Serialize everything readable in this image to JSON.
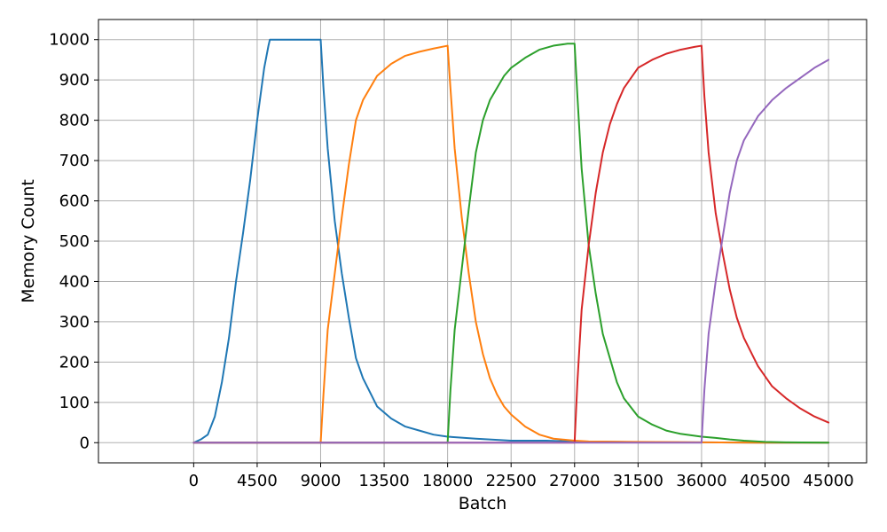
{
  "chart_data": {
    "type": "line",
    "title": "",
    "xlabel": "Batch",
    "ylabel": "Memory Count",
    "xlim": [
      -6750,
      47700
    ],
    "ylim": [
      -50,
      1050
    ],
    "xticks": [
      0,
      4500,
      9000,
      13500,
      18000,
      22500,
      27000,
      31500,
      36000,
      40500,
      45000
    ],
    "yticks": [
      0,
      100,
      200,
      300,
      400,
      500,
      600,
      700,
      800,
      900,
      1000
    ],
    "grid": true,
    "legend": "none",
    "series": [
      {
        "color": "#1f77b4",
        "x": [
          0,
          500,
          1000,
          1500,
          2000,
          2500,
          3000,
          3500,
          4000,
          4500,
          5000,
          5300,
          5400,
          5500,
          6000,
          7000,
          8000,
          9000,
          9200,
          9500,
          10000,
          10500,
          11000,
          11500,
          12000,
          13000,
          14000,
          15000,
          16000,
          17000,
          18000,
          20000,
          22500,
          25000,
          27000,
          30000,
          33000,
          36000,
          40000,
          45000
        ],
        "y": [
          0,
          8,
          20,
          65,
          150,
          260,
          400,
          520,
          650,
          800,
          930,
          985,
          1000,
          1000,
          1000,
          1000,
          1000,
          1000,
          880,
          730,
          550,
          420,
          310,
          210,
          160,
          90,
          60,
          40,
          30,
          20,
          15,
          10,
          5,
          5,
          3,
          2,
          1,
          1,
          0,
          0
        ]
      },
      {
        "color": "#ff7f0e",
        "x": [
          0,
          9000,
          9200,
          9500,
          10000,
          10500,
          11000,
          11500,
          12000,
          13000,
          14000,
          15000,
          16000,
          17000,
          18000,
          18200,
          18500,
          19000,
          19500,
          20000,
          20500,
          21000,
          21500,
          22000,
          22500,
          23500,
          24500,
          25500,
          27000,
          28000,
          31500,
          36000,
          40000,
          45000
        ],
        "y": [
          0,
          0,
          120,
          280,
          420,
          560,
          690,
          800,
          850,
          910,
          940,
          960,
          970,
          978,
          985,
          880,
          730,
          560,
          420,
          300,
          220,
          160,
          120,
          90,
          70,
          40,
          20,
          10,
          5,
          3,
          2,
          1,
          0,
          0
        ]
      },
      {
        "color": "#2ca02c",
        "x": [
          0,
          18000,
          18200,
          18500,
          19000,
          19500,
          20000,
          20500,
          21000,
          21500,
          22000,
          22500,
          23500,
          24500,
          25500,
          26500,
          27000,
          27200,
          27500,
          28000,
          28500,
          29000,
          29500,
          30000,
          30500,
          31500,
          32500,
          33500,
          34500,
          36000,
          37000,
          38000,
          39000,
          40500,
          42000,
          45000
        ],
        "y": [
          0,
          0,
          130,
          280,
          430,
          580,
          720,
          800,
          850,
          880,
          910,
          930,
          955,
          975,
          985,
          990,
          990,
          860,
          680,
          490,
          370,
          270,
          210,
          150,
          110,
          65,
          45,
          30,
          22,
          15,
          12,
          8,
          5,
          2,
          1,
          0
        ]
      },
      {
        "color": "#d62728",
        "x": [
          0,
          27000,
          27200,
          27500,
          28000,
          28500,
          29000,
          29500,
          30000,
          30500,
          31500,
          32500,
          33500,
          34500,
          35500,
          36000,
          36200,
          36500,
          37000,
          37500,
          38000,
          38500,
          39000,
          40000,
          41000,
          42000,
          43000,
          44000,
          45000
        ],
        "y": [
          0,
          0,
          150,
          330,
          490,
          620,
          720,
          790,
          840,
          880,
          930,
          950,
          965,
          975,
          982,
          985,
          860,
          720,
          570,
          470,
          380,
          310,
          260,
          190,
          140,
          110,
          85,
          65,
          50
        ]
      },
      {
        "color": "#9467bd",
        "x": [
          0,
          36000,
          36200,
          36500,
          37000,
          37500,
          38000,
          38500,
          39000,
          40000,
          41000,
          42000,
          43000,
          44000,
          45000
        ],
        "y": [
          0,
          0,
          130,
          270,
          400,
          510,
          620,
          700,
          750,
          810,
          850,
          880,
          905,
          930,
          950
        ]
      }
    ]
  }
}
